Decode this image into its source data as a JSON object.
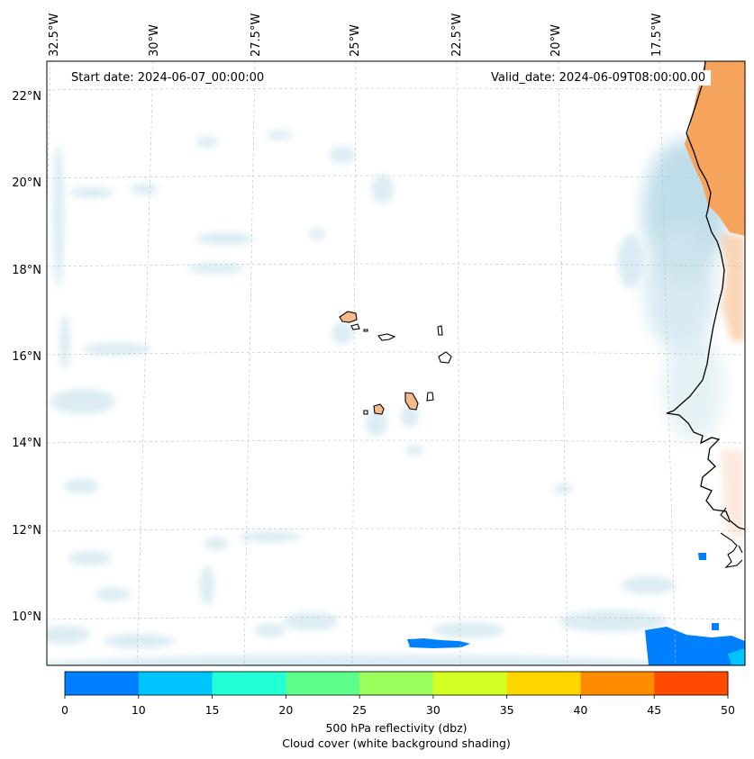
{
  "map": {
    "start_date": "Start date: 2024-06-07_00:00:00",
    "valid_date": "Valid_date: 2024-06-09T08:00:00.00",
    "lon_labels": [
      "32.5°W",
      "30°W",
      "27.5°W",
      "25°W",
      "22.5°W",
      "20°W",
      "17.5°W"
    ],
    "lat_labels": [
      "22°N",
      "20°N",
      "18°N",
      "16°N",
      "14°N",
      "12°N",
      "10°N"
    ],
    "extent": {
      "lon_min": -33.0,
      "lon_max": -16.0,
      "lat_min": 9.0,
      "lat_max": 22.8
    },
    "gridlines": true
  },
  "colorbar": {
    "ticks": [
      "0",
      "10",
      "15",
      "20",
      "25",
      "30",
      "35",
      "40",
      "45",
      "50"
    ],
    "colors": [
      "#0080ff",
      "#00c4ff",
      "#22ffd5",
      "#5cff8a",
      "#9aff5a",
      "#d4ff22",
      "#ffd700",
      "#ff8c00",
      "#ff4a00"
    ],
    "label_line1": "500 hPa reflectivity (dbz)",
    "label_line2": "Cloud cover (white background shading)"
  }
}
